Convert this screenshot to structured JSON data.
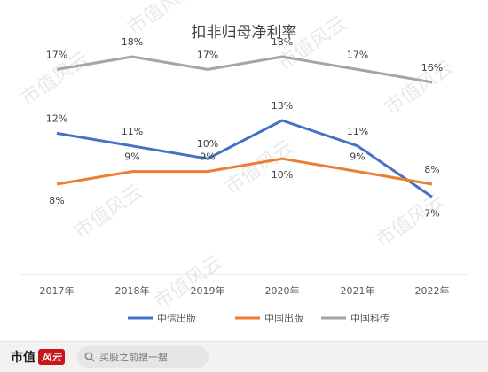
{
  "chart_data": {
    "type": "line",
    "title": "扣非归母净利率",
    "categories": [
      "2017年",
      "2018年",
      "2019年",
      "2020年",
      "2021年",
      "2022年"
    ],
    "series": [
      {
        "name": "中信出版",
        "values": [
          12,
          11,
          10,
          13,
          11,
          7
        ],
        "labels": [
          "12%",
          "11%",
          "10%",
          "13%",
          "11%",
          "7%"
        ]
      },
      {
        "name": "中国出版",
        "values": [
          8,
          9,
          9,
          10,
          9,
          8
        ],
        "labels": [
          "8%",
          "9%",
          "9%",
          "10%",
          "9%",
          "8%"
        ]
      },
      {
        "name": "中国科传",
        "values": [
          17,
          18,
          17,
          18,
          17,
          16
        ],
        "labels": [
          "17%",
          "18%",
          "17%",
          "18%",
          "17%",
          "16%"
        ]
      }
    ],
    "legend_position": "bottom",
    "grid": false
  },
  "colors": {
    "中信出版": "#4472c4",
    "中国出版": "#ed7d31",
    "中国科传": "#a5a5a5"
  },
  "watermark": {
    "text": "市值风云"
  },
  "footer": {
    "brand": "市值",
    "brand_badge": "风云",
    "search_placeholder": "买股之前搜一搜"
  }
}
